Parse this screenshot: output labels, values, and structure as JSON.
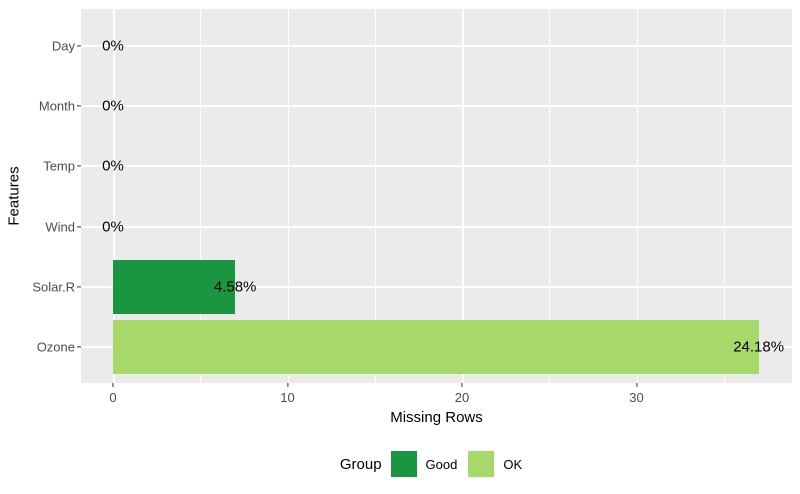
{
  "chart_data": {
    "type": "bar",
    "orientation": "horizontal",
    "title": "",
    "xlabel": "Missing Rows",
    "ylabel": "Features",
    "categories": [
      "Day",
      "Month",
      "Temp",
      "Wind",
      "Solar.R",
      "Ozone"
    ],
    "series": [
      {
        "name": "Missing Rows",
        "values": [
          0,
          0,
          0,
          0,
          7,
          37
        ],
        "pct_labels": [
          "0%",
          "0%",
          "0%",
          "0%",
          "4.58%",
          "24.18%"
        ],
        "groups": [
          "Good",
          "Good",
          "Good",
          "Good",
          "Good",
          "OK"
        ]
      }
    ],
    "x_ticks": [
      0,
      10,
      20,
      30
    ],
    "x_minor_ticks": [
      5,
      15,
      25,
      35
    ],
    "xlim": [
      -1.85,
      38.85
    ],
    "grid": true,
    "panel_background": "#EBEBEB",
    "gridline_color": "#FFFFFF",
    "group_colors": {
      "Good": "#1a9641",
      "OK": "#a6d96a"
    },
    "legend": {
      "title": "Group",
      "position": "bottom",
      "entries": [
        {
          "label": "Good",
          "color": "#1a9641"
        },
        {
          "label": "OK",
          "color": "#a6d96a"
        }
      ]
    }
  }
}
